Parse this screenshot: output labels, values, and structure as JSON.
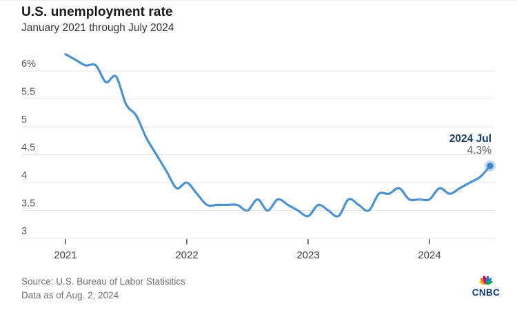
{
  "page": {
    "background": "#ffffff",
    "top_border_color": "#ececec"
  },
  "header": {
    "title": "U.S. unemployment rate",
    "subtitle": "January 2021 through July 2024"
  },
  "chart_data": {
    "type": "line",
    "title": "U.S. unemployment rate",
    "subtitle": "January 2021 through July 2024",
    "x": [
      "2021-01",
      "2021-02",
      "2021-03",
      "2021-04",
      "2021-05",
      "2021-06",
      "2021-07",
      "2021-08",
      "2021-09",
      "2021-10",
      "2021-11",
      "2021-12",
      "2022-01",
      "2022-02",
      "2022-03",
      "2022-04",
      "2022-05",
      "2022-06",
      "2022-07",
      "2022-08",
      "2022-09",
      "2022-10",
      "2022-11",
      "2022-12",
      "2023-01",
      "2023-02",
      "2023-03",
      "2023-04",
      "2023-05",
      "2023-06",
      "2023-07",
      "2023-08",
      "2023-09",
      "2023-10",
      "2023-11",
      "2023-12",
      "2024-01",
      "2024-02",
      "2024-03",
      "2024-04",
      "2024-05",
      "2024-06",
      "2024-07"
    ],
    "series": [
      {
        "name": "U.S. unemployment rate (%)",
        "values": [
          6.3,
          6.2,
          6.1,
          6.1,
          5.8,
          5.9,
          5.4,
          5.2,
          4.8,
          4.5,
          4.2,
          3.9,
          4.0,
          3.8,
          3.6,
          3.6,
          3.6,
          3.6,
          3.5,
          3.7,
          3.5,
          3.7,
          3.6,
          3.5,
          3.4,
          3.6,
          3.5,
          3.4,
          3.7,
          3.6,
          3.5,
          3.8,
          3.8,
          3.9,
          3.7,
          3.7,
          3.7,
          3.9,
          3.8,
          3.9,
          4.0,
          4.1,
          4.3
        ]
      }
    ],
    "ylim": [
      3,
      6.4
    ],
    "grid": "horizontal",
    "legend": "none",
    "y_axis": {
      "ticks": [
        {
          "value": 6.0,
          "label": "6%"
        },
        {
          "value": 5.5,
          "label": "5.5"
        },
        {
          "value": 5.0,
          "label": "5"
        },
        {
          "value": 4.5,
          "label": "4.5"
        },
        {
          "value": 4.0,
          "label": "4"
        },
        {
          "value": 3.5,
          "label": "3.5"
        },
        {
          "value": 3.0,
          "label": "3"
        }
      ]
    },
    "x_axis": {
      "ticks": [
        {
          "label": "2021",
          "month_index": 0
        },
        {
          "label": "2022",
          "month_index": 12
        },
        {
          "label": "2023",
          "month_index": 24
        },
        {
          "label": "2024",
          "month_index": 36
        }
      ]
    },
    "colors": {
      "line": "#4b92d2",
      "endpoint": "#3d85c6",
      "grid": "#e4e4e4",
      "y_tick_label": "#58595b",
      "x_tick": "#4a4a4a",
      "x_tick_label": "#3f3f3f"
    },
    "annotation": {
      "label": "2024 Jul",
      "value": "4.3%"
    }
  },
  "annotation": {
    "label": "2024 Jul",
    "value": "4.3%",
    "label_color": "#1b3d66",
    "value_color": "#595959"
  },
  "footer": {
    "source": "Source: U.S. Bureau of Labor Statisitics",
    "data_as_of": "Data as of Aug. 2, 2024"
  },
  "logo": {
    "text": "CNBC",
    "text_color": "#0c3a70",
    "feather_colors": [
      "#FCB711",
      "#F37021",
      "#CC004C",
      "#6460AA",
      "#0089D0",
      "#0DB14B"
    ]
  }
}
